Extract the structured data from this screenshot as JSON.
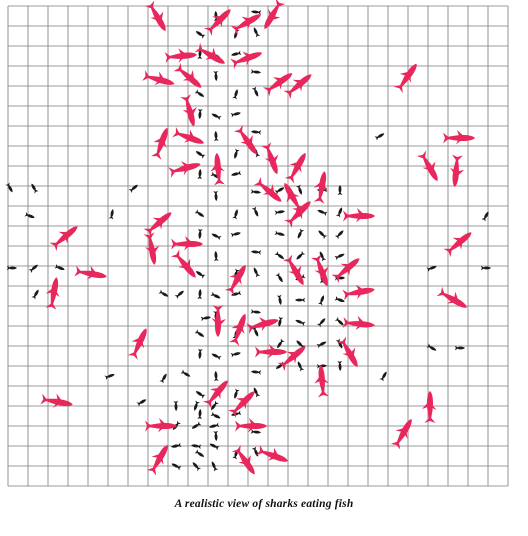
{
  "caption": "A realistic view of sharks eating fish",
  "colors": {
    "background": "#ffffff",
    "grid": "#7a7a7a",
    "shark": "#e8285c",
    "fish": "#1a1a1a"
  },
  "legend_items": [
    {
      "name": "shark",
      "icon": "shark-icon"
    },
    {
      "name": "fish",
      "icon": "fish-icon"
    }
  ]
}
